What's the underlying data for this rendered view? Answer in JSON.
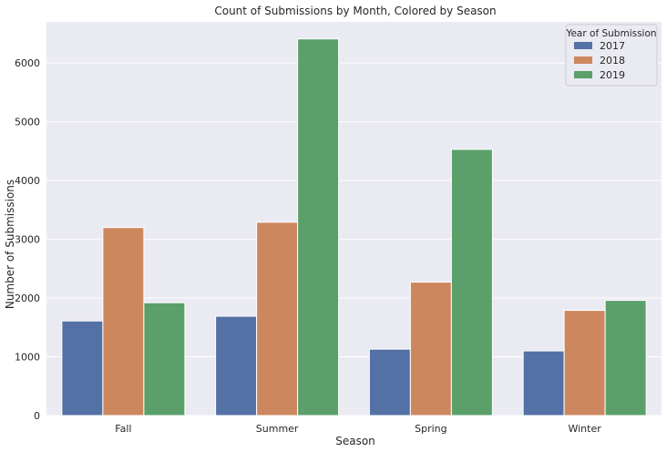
{
  "chart_data": {
    "type": "bar",
    "title": "Count of Submissions by Month, Colored by Season",
    "xlabel": "Season",
    "ylabel": "Number of Submissions",
    "categories": [
      "Fall",
      "Summer",
      "Spring",
      "Winter"
    ],
    "series": [
      {
        "name": "2017",
        "color": "#5471a6",
        "values": [
          1610,
          1690,
          1130,
          1100
        ]
      },
      {
        "name": "2018",
        "color": "#cd875f",
        "values": [
          3200,
          3290,
          2270,
          1790
        ]
      },
      {
        "name": "2019",
        "color": "#5b9f6b",
        "values": [
          1920,
          6410,
          4530,
          1960
        ]
      }
    ],
    "ylim": [
      0,
      6700
    ],
    "yticks": [
      0,
      1000,
      2000,
      3000,
      4000,
      5000,
      6000
    ],
    "legend": {
      "title": "Year of Submission",
      "position": "top-right"
    },
    "grid": true,
    "background": "#eaeaf2"
  }
}
